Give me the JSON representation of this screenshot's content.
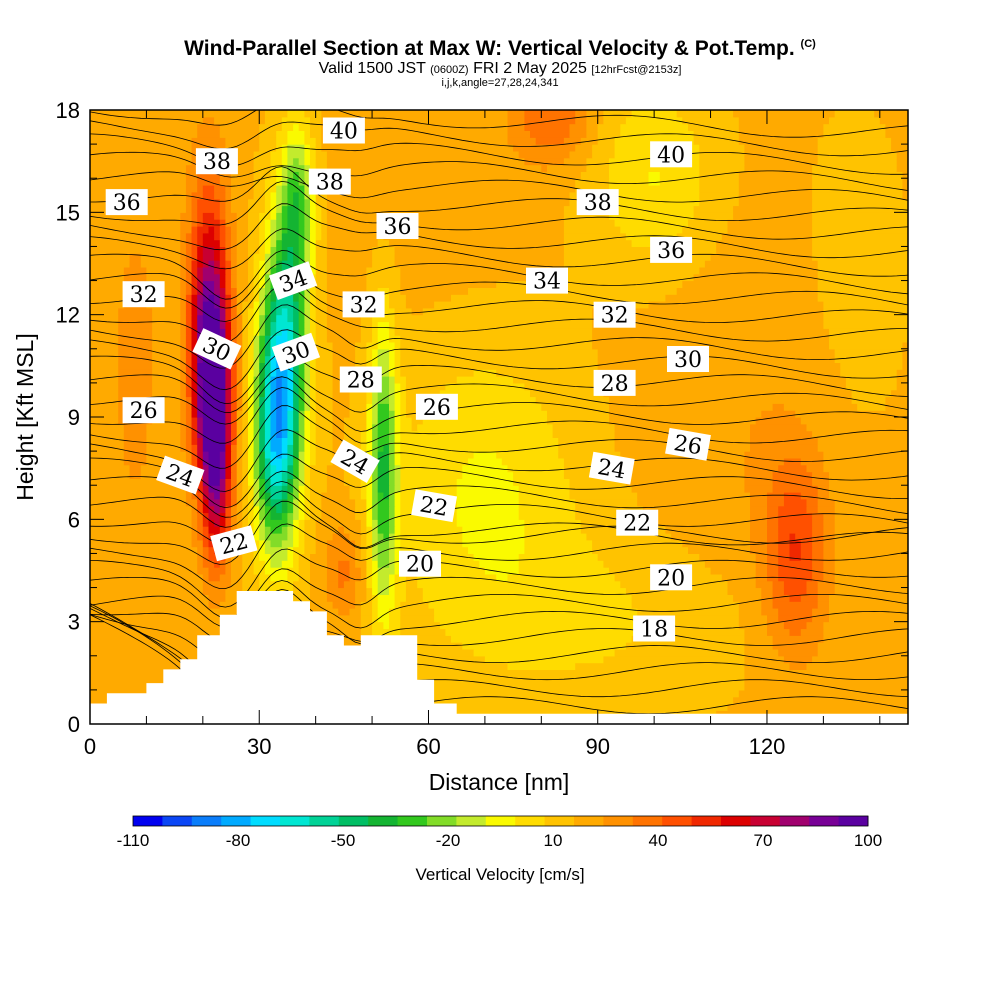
{
  "chart_data": {
    "type": "heatmap",
    "title": "Wind-Parallel Section at Max W: Vertical Velocity & Pot.Temp.",
    "title_mark": "(C)",
    "subtitle_main": "Valid 1500 JST",
    "subtitle_zulu": "(0600Z)",
    "subtitle_date": "FRI 2 May 2025",
    "subtitle_fcst": "[12hrFcst@2153z]",
    "subtitle2": "i,j,k,angle=27,28,24,341",
    "xlabel": "Distance [nm]",
    "ylabel": "Height [Kft MSL]",
    "xlim": [
      0,
      145
    ],
    "ylim": [
      0,
      18
    ],
    "xticks": [
      0,
      30,
      60,
      90,
      120
    ],
    "yticks": [
      0,
      3,
      6,
      9,
      12,
      15,
      18
    ],
    "colorbar": {
      "label": "Vertical Velocity [cm/s]",
      "tick_labels": [
        "-110",
        "-80",
        "-50",
        "-20",
        "10",
        "40",
        "70",
        "100"
      ],
      "colors": [
        "#0000f0",
        "#0a46f5",
        "#0a7dfa",
        "#00aaff",
        "#00dcff",
        "#00e6d2",
        "#00d296",
        "#00be64",
        "#14b432",
        "#32c81e",
        "#82dc28",
        "#c3eb2d",
        "#fafa00",
        "#ffdc00",
        "#ffc300",
        "#ffaa00",
        "#ff9100",
        "#ff7300",
        "#ff5000",
        "#f02800",
        "#dc0000",
        "#c80032",
        "#a0006e",
        "#780096",
        "#5a00a0"
      ]
    },
    "velocity_scale": {
      "cmin": -110,
      "cmax": 100
    },
    "velocity_field": [
      {
        "x": 22,
        "y": 9.5,
        "value": 100,
        "sx": 2.2,
        "sy": 2.0
      },
      {
        "x": 21,
        "y": 12,
        "value": 85,
        "sx": 2.5,
        "sy": 2.8
      },
      {
        "x": 22.5,
        "y": 6.5,
        "value": 60,
        "sx": 1.8,
        "sy": 1.6
      },
      {
        "x": 33,
        "y": 8.5,
        "value": -80,
        "sx": 2.8,
        "sy": 2.5
      },
      {
        "x": 35,
        "y": 12,
        "value": -45,
        "sx": 2.8,
        "sy": 2.8
      },
      {
        "x": 37,
        "y": 15.5,
        "value": -20,
        "sx": 2.0,
        "sy": 1.5
      },
      {
        "x": 52,
        "y": 7.5,
        "value": -40,
        "sx": 1.8,
        "sy": 3.0
      },
      {
        "x": 45,
        "y": 4.5,
        "value": 40,
        "sx": 2.5,
        "sy": 1.0
      },
      {
        "x": 125,
        "y": 5,
        "value": 55,
        "sx": 4.0,
        "sy": 2.0
      },
      {
        "x": 82,
        "y": 17.8,
        "value": 45,
        "sx": 5.0,
        "sy": 1.0
      },
      {
        "x": 8,
        "y": 10.5,
        "value": 30,
        "sx": 3.0,
        "sy": 3.5
      },
      {
        "x": 115,
        "y": 9,
        "value": 25,
        "sx": 12.0,
        "sy": 4.0
      },
      {
        "x": 60,
        "y": 16,
        "value": 22,
        "sx": 10.0,
        "sy": 2.5
      },
      {
        "x": 70,
        "y": 7,
        "value": -5,
        "sx": 12.0,
        "sy": 3.0
      },
      {
        "x": 100,
        "y": 16,
        "value": -5,
        "sx": 8.0,
        "sy": 2.0
      },
      {
        "x": 135,
        "y": 13,
        "value": 12,
        "sx": 8.0,
        "sy": 4.0
      },
      {
        "x": 90,
        "y": 3,
        "value": 5,
        "sx": 20.0,
        "sy": 2.0
      }
    ],
    "theta_labels": [
      {
        "text": "40",
        "x": 45,
        "y": 17.4,
        "angle": 0
      },
      {
        "text": "40",
        "x": 103,
        "y": 16.7,
        "angle": 0
      },
      {
        "text": "38",
        "x": 22.5,
        "y": 16.5,
        "angle": 0
      },
      {
        "text": "38",
        "x": 42.5,
        "y": 15.9,
        "angle": 0
      },
      {
        "text": "38",
        "x": 90,
        "y": 15.3,
        "angle": 0
      },
      {
        "text": "36",
        "x": 6.5,
        "y": 15.3,
        "angle": 0
      },
      {
        "text": "36",
        "x": 54.5,
        "y": 14.6,
        "angle": 0
      },
      {
        "text": "36",
        "x": 103,
        "y": 13.9,
        "angle": 0
      },
      {
        "text": "34",
        "x": 36,
        "y": 13.0,
        "angle": -20
      },
      {
        "text": "34",
        "x": 81,
        "y": 13.0,
        "angle": 0
      },
      {
        "text": "32",
        "x": 9.5,
        "y": 12.6,
        "angle": 0
      },
      {
        "text": "32",
        "x": 48.5,
        "y": 12.3,
        "angle": 0
      },
      {
        "text": "32",
        "x": 93,
        "y": 12.0,
        "angle": 0
      },
      {
        "text": "30",
        "x": 22.5,
        "y": 11.0,
        "angle": 25
      },
      {
        "text": "30",
        "x": 36.5,
        "y": 10.9,
        "angle": -20
      },
      {
        "text": "30",
        "x": 106,
        "y": 10.7,
        "angle": 0
      },
      {
        "text": "28",
        "x": 48,
        "y": 10.1,
        "angle": 0
      },
      {
        "text": "28",
        "x": 93,
        "y": 10.0,
        "angle": 0
      },
      {
        "text": "26",
        "x": 9.5,
        "y": 9.2,
        "angle": 0
      },
      {
        "text": "26",
        "x": 61.5,
        "y": 9.3,
        "angle": 0
      },
      {
        "text": "26",
        "x": 106,
        "y": 8.2,
        "angle": 10
      },
      {
        "text": "24",
        "x": 16,
        "y": 7.3,
        "angle": 20
      },
      {
        "text": "24",
        "x": 47,
        "y": 7.7,
        "angle": 30
      },
      {
        "text": "24",
        "x": 92.5,
        "y": 7.5,
        "angle": 10
      },
      {
        "text": "22",
        "x": 25.5,
        "y": 5.3,
        "angle": -15
      },
      {
        "text": "22",
        "x": 61,
        "y": 6.4,
        "angle": 10
      },
      {
        "text": "22",
        "x": 97,
        "y": 5.9,
        "angle": 0
      },
      {
        "text": "20",
        "x": 58.5,
        "y": 4.7,
        "angle": 0
      },
      {
        "text": "20",
        "x": 103,
        "y": 4.3,
        "angle": 0
      },
      {
        "text": "18",
        "x": 100,
        "y": 2.8,
        "angle": 0
      }
    ],
    "terrain": [
      [
        0,
        0.6
      ],
      [
        3,
        0.6
      ],
      [
        3,
        0.9
      ],
      [
        10,
        0.9
      ],
      [
        10,
        1.2
      ],
      [
        13,
        1.2
      ],
      [
        13,
        1.6
      ],
      [
        16,
        1.6
      ],
      [
        16,
        1.9
      ],
      [
        19,
        1.9
      ],
      [
        19,
        2.6
      ],
      [
        23,
        2.6
      ],
      [
        23,
        3.2
      ],
      [
        26,
        3.2
      ],
      [
        26,
        3.9
      ],
      [
        36,
        3.9
      ],
      [
        36,
        3.6
      ],
      [
        39,
        3.6
      ],
      [
        39,
        3.3
      ],
      [
        42,
        3.3
      ],
      [
        42,
        2.6
      ],
      [
        45,
        2.6
      ],
      [
        45,
        2.3
      ],
      [
        48,
        2.3
      ],
      [
        48,
        2.6
      ],
      [
        58,
        2.6
      ],
      [
        58,
        1.3
      ],
      [
        61,
        1.3
      ],
      [
        61,
        0.6
      ],
      [
        65,
        0.6
      ],
      [
        65,
        0.3
      ],
      [
        145,
        0.3
      ]
    ]
  }
}
